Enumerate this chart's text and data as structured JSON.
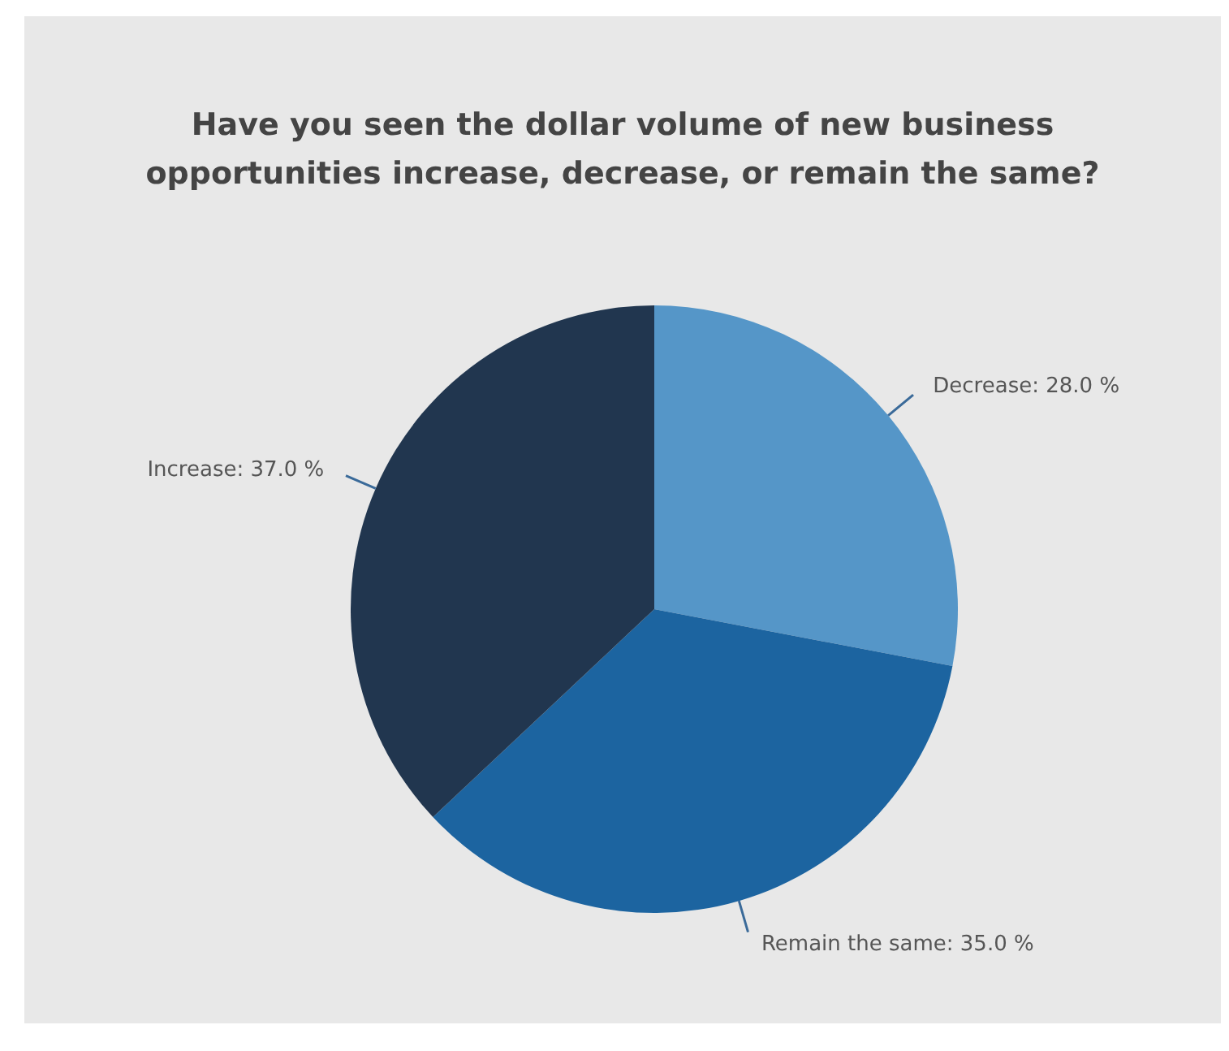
{
  "chart_data": {
    "type": "pie",
    "title": "Have you seen the dollar volume of new business opportunities increase, decrease, or remain the same?",
    "categories": [
      "Decrease",
      "Remain the same",
      "Increase"
    ],
    "values": [
      28,
      35,
      37
    ],
    "value_labels": [
      "28.0 %",
      "35.0 %",
      "37.0 %"
    ],
    "colors": [
      "#5596c8",
      "#1c64a0",
      "#21364f"
    ],
    "legend": false
  }
}
